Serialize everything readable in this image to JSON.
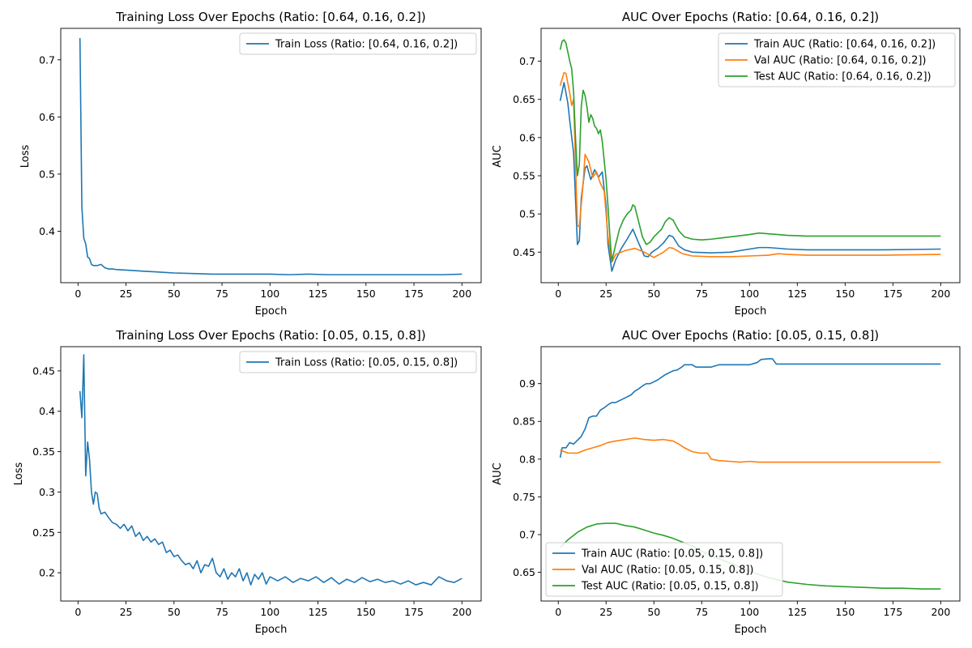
{
  "colors": {
    "blue": "#1f77b4",
    "orange": "#ff7f0e",
    "green": "#2ca02c"
  },
  "chart_data": [
    {
      "type": "line",
      "title": "Training Loss Over Epochs (Ratio: [0.64, 0.16, 0.2])",
      "xlabel": "Epoch",
      "ylabel": "Loss",
      "xlim": [
        -9,
        210
      ],
      "ylim": [
        0.31,
        0.755
      ],
      "xticks": [
        0,
        25,
        50,
        75,
        100,
        125,
        150,
        175,
        200
      ],
      "yticks": [
        0.4,
        0.5,
        0.6,
        0.7
      ],
      "grid": false,
      "legend_position": "upper right",
      "series": [
        {
          "name": "Train Loss (Ratio: [0.64, 0.16, 0.2])",
          "color": "blue",
          "x": [
            1,
            2,
            3,
            4,
            5,
            6,
            7,
            8,
            10,
            12,
            14,
            16,
            18,
            20,
            25,
            30,
            35,
            40,
            45,
            50,
            60,
            70,
            80,
            90,
            100,
            110,
            120,
            130,
            140,
            150,
            160,
            170,
            180,
            190,
            200
          ],
          "y": [
            0.738,
            0.442,
            0.388,
            0.378,
            0.355,
            0.352,
            0.342,
            0.34,
            0.34,
            0.342,
            0.336,
            0.334,
            0.334,
            0.333,
            0.332,
            0.331,
            0.33,
            0.329,
            0.328,
            0.327,
            0.326,
            0.325,
            0.325,
            0.325,
            0.325,
            0.324,
            0.325,
            0.324,
            0.324,
            0.324,
            0.324,
            0.324,
            0.324,
            0.324,
            0.325
          ]
        }
      ]
    },
    {
      "type": "line",
      "title": "AUC Over Epochs (Ratio: [0.64, 0.16, 0.2])",
      "xlabel": "Epoch",
      "ylabel": "AUC",
      "xlim": [
        -9,
        210
      ],
      "ylim": [
        0.41,
        0.743
      ],
      "xticks": [
        0,
        25,
        50,
        75,
        100,
        125,
        150,
        175,
        200
      ],
      "yticks": [
        0.45,
        0.5,
        0.55,
        0.6,
        0.65,
        0.7
      ],
      "grid": false,
      "legend_position": "upper right",
      "series": [
        {
          "name": "Train AUC (Ratio: [0.64, 0.16, 0.2])",
          "color": "blue",
          "x": [
            1,
            3,
            5,
            6,
            8,
            10,
            11,
            12,
            14,
            15,
            17,
            19,
            21,
            23,
            25,
            26,
            28,
            30,
            33,
            36,
            39,
            42,
            45,
            47,
            49,
            52,
            55,
            58,
            60,
            63,
            66,
            70,
            80,
            90,
            100,
            105,
            110,
            120,
            130,
            150,
            170,
            200
          ],
          "y": [
            0.648,
            0.672,
            0.645,
            0.622,
            0.58,
            0.46,
            0.465,
            0.52,
            0.56,
            0.563,
            0.545,
            0.558,
            0.548,
            0.555,
            0.51,
            0.46,
            0.425,
            0.44,
            0.455,
            0.467,
            0.48,
            0.462,
            0.445,
            0.444,
            0.45,
            0.455,
            0.462,
            0.472,
            0.47,
            0.458,
            0.453,
            0.45,
            0.449,
            0.45,
            0.454,
            0.456,
            0.456,
            0.454,
            0.453,
            0.453,
            0.453,
            0.454
          ]
        },
        {
          "name": "Val AUC (Ratio: [0.64, 0.16, 0.2])",
          "color": "orange",
          "x": [
            1,
            3,
            4,
            6,
            7,
            8,
            10,
            11,
            13,
            14,
            16,
            18,
            20,
            22,
            24,
            26,
            28,
            30,
            35,
            40,
            45,
            50,
            55,
            58,
            60,
            65,
            70,
            80,
            90,
            100,
            110,
            115,
            120,
            130,
            150,
            170,
            200
          ],
          "y": [
            0.668,
            0.685,
            0.684,
            0.658,
            0.642,
            0.65,
            0.485,
            0.483,
            0.54,
            0.578,
            0.568,
            0.548,
            0.555,
            0.54,
            0.53,
            0.47,
            0.437,
            0.447,
            0.452,
            0.455,
            0.45,
            0.443,
            0.45,
            0.456,
            0.455,
            0.448,
            0.445,
            0.444,
            0.444,
            0.445,
            0.446,
            0.448,
            0.447,
            0.446,
            0.446,
            0.446,
            0.447
          ]
        },
        {
          "name": "Test AUC (Ratio: [0.64, 0.16, 0.2])",
          "color": "green",
          "x": [
            1,
            2,
            3,
            4,
            5,
            6,
            7,
            8,
            9,
            10,
            11,
            12,
            13,
            14,
            15,
            16,
            17,
            18,
            19,
            20,
            21,
            22,
            23,
            24,
            25,
            26,
            27,
            28,
            30,
            32,
            34,
            36,
            38,
            39,
            40,
            42,
            44,
            46,
            48,
            50,
            52,
            54,
            56,
            58,
            60,
            63,
            66,
            70,
            75,
            80,
            90,
            100,
            105,
            110,
            115,
            120,
            130,
            150,
            170,
            200
          ],
          "y": [
            0.715,
            0.726,
            0.728,
            0.724,
            0.712,
            0.7,
            0.69,
            0.66,
            0.6,
            0.55,
            0.565,
            0.64,
            0.662,
            0.655,
            0.64,
            0.62,
            0.63,
            0.625,
            0.615,
            0.612,
            0.605,
            0.61,
            0.595,
            0.57,
            0.545,
            0.51,
            0.47,
            0.438,
            0.46,
            0.48,
            0.492,
            0.5,
            0.505,
            0.512,
            0.51,
            0.49,
            0.47,
            0.46,
            0.463,
            0.47,
            0.475,
            0.48,
            0.49,
            0.495,
            0.492,
            0.478,
            0.47,
            0.467,
            0.466,
            0.467,
            0.47,
            0.473,
            0.475,
            0.474,
            0.473,
            0.472,
            0.471,
            0.471,
            0.471,
            0.471
          ]
        }
      ]
    },
    {
      "type": "line",
      "title": "Training Loss Over Epochs (Ratio: [0.05, 0.15, 0.8])",
      "xlabel": "Epoch",
      "ylabel": "Loss",
      "xlim": [
        -9,
        210
      ],
      "ylim": [
        0.165,
        0.48
      ],
      "xticks": [
        0,
        25,
        50,
        75,
        100,
        125,
        150,
        175,
        200
      ],
      "yticks": [
        0.2,
        0.25,
        0.3,
        0.35,
        0.4,
        0.45
      ],
      "grid": false,
      "legend_position": "upper right",
      "series": [
        {
          "name": "Train Loss (Ratio: [0.05, 0.15, 0.8])",
          "color": "blue",
          "x": [
            1,
            2,
            3,
            4,
            5,
            6,
            7,
            8,
            9,
            10,
            11,
            12,
            14,
            16,
            18,
            20,
            22,
            24,
            26,
            28,
            30,
            32,
            34,
            36,
            38,
            40,
            42,
            44,
            46,
            48,
            50,
            52,
            54,
            56,
            58,
            60,
            62,
            64,
            66,
            68,
            70,
            72,
            74,
            76,
            78,
            80,
            82,
            84,
            86,
            88,
            90,
            92,
            94,
            96,
            98,
            100,
            104,
            108,
            112,
            116,
            120,
            124,
            128,
            132,
            136,
            140,
            144,
            148,
            152,
            156,
            160,
            164,
            168,
            172,
            176,
            180,
            184,
            188,
            192,
            196,
            200
          ],
          "y": [
            0.425,
            0.392,
            0.47,
            0.32,
            0.362,
            0.34,
            0.3,
            0.285,
            0.3,
            0.298,
            0.28,
            0.273,
            0.275,
            0.268,
            0.262,
            0.26,
            0.255,
            0.26,
            0.252,
            0.258,
            0.245,
            0.25,
            0.24,
            0.245,
            0.238,
            0.242,
            0.235,
            0.238,
            0.225,
            0.228,
            0.22,
            0.222,
            0.215,
            0.21,
            0.212,
            0.205,
            0.215,
            0.2,
            0.21,
            0.208,
            0.218,
            0.2,
            0.195,
            0.205,
            0.192,
            0.2,
            0.195,
            0.205,
            0.19,
            0.2,
            0.185,
            0.198,
            0.192,
            0.2,
            0.186,
            0.195,
            0.19,
            0.195,
            0.188,
            0.193,
            0.19,
            0.195,
            0.188,
            0.194,
            0.186,
            0.192,
            0.188,
            0.194,
            0.189,
            0.192,
            0.188,
            0.19,
            0.186,
            0.19,
            0.185,
            0.188,
            0.185,
            0.195,
            0.19,
            0.188,
            0.193
          ]
        }
      ]
    },
    {
      "type": "line",
      "title": "AUC Over Epochs (Ratio: [0.05, 0.15, 0.8])",
      "xlabel": "Epoch",
      "ylabel": "AUC",
      "xlim": [
        -9,
        210
      ],
      "ylim": [
        0.612,
        0.949
      ],
      "xticks": [
        0,
        25,
        50,
        75,
        100,
        125,
        150,
        175,
        200
      ],
      "yticks": [
        0.65,
        0.7,
        0.75,
        0.8,
        0.85,
        0.9
      ],
      "grid": false,
      "legend_position": "lower left",
      "series": [
        {
          "name": "Train AUC (Ratio: [0.05, 0.15, 0.8])",
          "color": "blue",
          "x": [
            1,
            2,
            4,
            6,
            8,
            10,
            12,
            14,
            16,
            18,
            20,
            22,
            24,
            26,
            28,
            30,
            34,
            38,
            40,
            42,
            44,
            46,
            48,
            52,
            56,
            60,
            62,
            64,
            66,
            68,
            70,
            72,
            76,
            80,
            84,
            88,
            100,
            104,
            106,
            110,
            112,
            114,
            120,
            140,
            160,
            180,
            200
          ],
          "y": [
            0.802,
            0.815,
            0.815,
            0.822,
            0.82,
            0.825,
            0.83,
            0.84,
            0.855,
            0.857,
            0.857,
            0.865,
            0.868,
            0.872,
            0.875,
            0.875,
            0.88,
            0.885,
            0.89,
            0.893,
            0.897,
            0.9,
            0.9,
            0.905,
            0.912,
            0.917,
            0.918,
            0.921,
            0.925,
            0.925,
            0.925,
            0.922,
            0.922,
            0.922,
            0.925,
            0.925,
            0.925,
            0.928,
            0.932,
            0.933,
            0.933,
            0.926,
            0.926,
            0.926,
            0.926,
            0.926,
            0.926
          ]
        },
        {
          "name": "Val AUC (Ratio: [0.05, 0.15, 0.8])",
          "color": "orange",
          "x": [
            1,
            3,
            5,
            8,
            10,
            14,
            18,
            22,
            26,
            30,
            35,
            40,
            45,
            50,
            55,
            60,
            63,
            66,
            70,
            74,
            78,
            80,
            84,
            90,
            95,
            100,
            105,
            110,
            115,
            120,
            125,
            130,
            150,
            170,
            200
          ],
          "y": [
            0.812,
            0.81,
            0.808,
            0.808,
            0.808,
            0.812,
            0.815,
            0.818,
            0.822,
            0.824,
            0.826,
            0.828,
            0.826,
            0.825,
            0.826,
            0.824,
            0.82,
            0.815,
            0.81,
            0.808,
            0.808,
            0.8,
            0.798,
            0.797,
            0.796,
            0.797,
            0.796,
            0.796,
            0.796,
            0.796,
            0.796,
            0.796,
            0.796,
            0.796,
            0.796
          ]
        },
        {
          "name": "Test AUC (Ratio: [0.05, 0.15, 0.8])",
          "color": "green",
          "x": [
            1,
            5,
            10,
            15,
            20,
            25,
            30,
            35,
            40,
            45,
            50,
            55,
            60,
            65,
            70,
            75,
            80,
            85,
            90,
            95,
            100,
            105,
            110,
            115,
            120,
            130,
            140,
            150,
            160,
            170,
            180,
            190,
            200
          ],
          "y": [
            0.683,
            0.693,
            0.703,
            0.71,
            0.714,
            0.715,
            0.715,
            0.712,
            0.71,
            0.706,
            0.702,
            0.699,
            0.695,
            0.69,
            0.685,
            0.678,
            0.672,
            0.667,
            0.662,
            0.657,
            0.652,
            0.647,
            0.643,
            0.64,
            0.637,
            0.634,
            0.632,
            0.631,
            0.63,
            0.629,
            0.629,
            0.628,
            0.628
          ]
        }
      ]
    }
  ]
}
